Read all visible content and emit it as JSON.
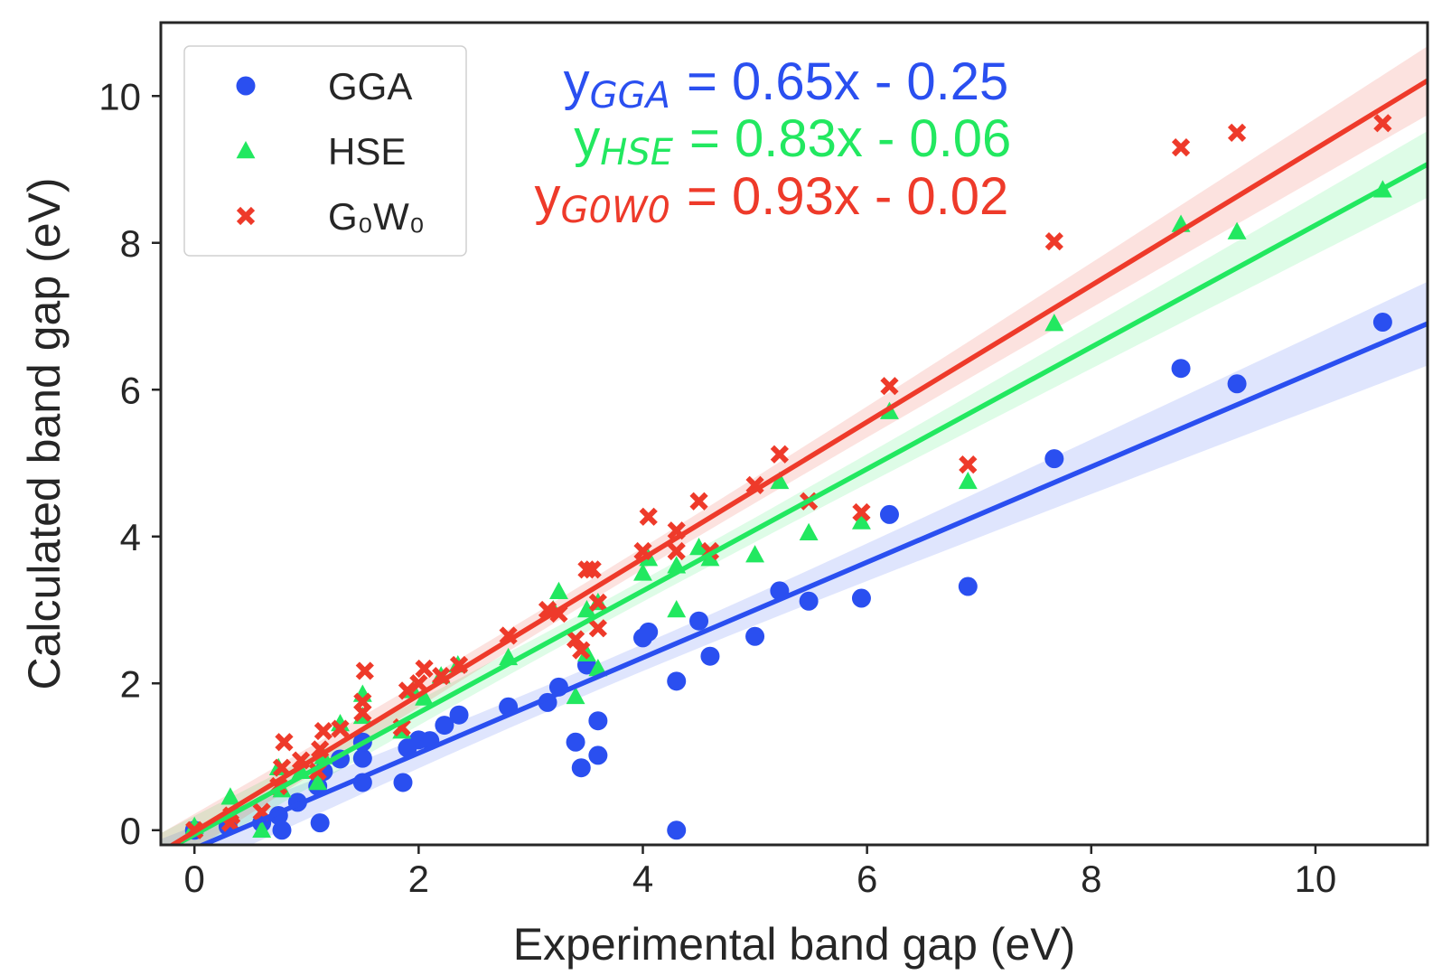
{
  "chart_data": {
    "type": "scatter",
    "xlabel": "Experimental band gap (eV)",
    "ylabel": "Calculated band gap (eV)",
    "xlim": [
      -0.3,
      11.0
    ],
    "ylim": [
      -0.2,
      11.0
    ],
    "xticks": [
      0,
      2,
      4,
      6,
      8,
      10
    ],
    "yticks": [
      0,
      2,
      4,
      6,
      8,
      10
    ],
    "grid": false,
    "legend_placement": "top-left",
    "series": [
      {
        "name": "GGA",
        "legend_label": "GGA",
        "marker": "circle",
        "color": "#2a4ff0",
        "fit": {
          "slope": 0.65,
          "intercept": -0.25
        },
        "equation": {
          "y": "y",
          "sub": "GGA",
          "rhs": " = 0.65x - 0.25"
        },
        "points": [
          [
            0.0,
            0.0
          ],
          [
            0.3,
            0.05
          ],
          [
            0.6,
            0.1
          ],
          [
            0.75,
            0.2
          ],
          [
            0.78,
            0.0
          ],
          [
            0.92,
            0.38
          ],
          [
            1.1,
            0.6
          ],
          [
            1.12,
            0.1
          ],
          [
            1.15,
            0.8
          ],
          [
            1.3,
            0.97
          ],
          [
            1.5,
            0.98
          ],
          [
            1.5,
            1.2
          ],
          [
            1.5,
            0.65
          ],
          [
            1.86,
            0.65
          ],
          [
            1.9,
            1.12
          ],
          [
            2.0,
            1.23
          ],
          [
            2.1,
            1.22
          ],
          [
            2.23,
            1.43
          ],
          [
            2.36,
            1.57
          ],
          [
            2.8,
            1.68
          ],
          [
            3.15,
            1.74
          ],
          [
            3.25,
            1.95
          ],
          [
            3.4,
            1.2
          ],
          [
            3.45,
            0.85
          ],
          [
            3.5,
            2.25
          ],
          [
            3.6,
            1.49
          ],
          [
            3.6,
            1.02
          ],
          [
            4.0,
            2.62
          ],
          [
            4.05,
            2.7
          ],
          [
            4.3,
            2.03
          ],
          [
            4.3,
            0.0
          ],
          [
            4.5,
            2.85
          ],
          [
            4.6,
            2.37
          ],
          [
            5.0,
            2.64
          ],
          [
            5.22,
            3.26
          ],
          [
            5.48,
            3.12
          ],
          [
            5.95,
            3.16
          ],
          [
            6.2,
            4.3
          ],
          [
            6.9,
            3.32
          ],
          [
            7.67,
            5.06
          ],
          [
            8.8,
            6.29
          ],
          [
            9.3,
            6.08
          ],
          [
            10.6,
            6.92
          ]
        ]
      },
      {
        "name": "HSE",
        "legend_label": "HSE",
        "marker": "triangle",
        "color": "#22e860",
        "fit": {
          "slope": 0.83,
          "intercept": -0.06
        },
        "equation": {
          "y": "y",
          "sub": "HSE",
          "rhs": " = 0.83x - 0.06"
        },
        "points": [
          [
            0.0,
            0.05
          ],
          [
            0.32,
            0.45
          ],
          [
            0.6,
            0.0
          ],
          [
            0.75,
            0.85
          ],
          [
            0.78,
            0.55
          ],
          [
            0.95,
            0.8
          ],
          [
            1.1,
            0.65
          ],
          [
            1.15,
            1.0
          ],
          [
            1.3,
            1.45
          ],
          [
            1.5,
            1.55
          ],
          [
            1.5,
            1.85
          ],
          [
            1.85,
            1.35
          ],
          [
            1.95,
            1.9
          ],
          [
            2.05,
            1.8
          ],
          [
            2.2,
            2.1
          ],
          [
            2.35,
            2.25
          ],
          [
            2.8,
            2.35
          ],
          [
            3.2,
            3.0
          ],
          [
            3.25,
            3.25
          ],
          [
            3.4,
            1.82
          ],
          [
            3.5,
            2.4
          ],
          [
            3.5,
            3.0
          ],
          [
            3.6,
            3.1
          ],
          [
            3.6,
            2.2
          ],
          [
            4.0,
            3.5
          ],
          [
            4.05,
            3.7
          ],
          [
            4.3,
            3.6
          ],
          [
            4.3,
            3.0
          ],
          [
            4.5,
            3.85
          ],
          [
            4.6,
            3.7
          ],
          [
            5.0,
            3.75
          ],
          [
            5.22,
            4.75
          ],
          [
            5.48,
            4.05
          ],
          [
            5.95,
            4.2
          ],
          [
            6.2,
            5.7
          ],
          [
            6.9,
            4.75
          ],
          [
            7.67,
            6.9
          ],
          [
            8.8,
            8.25
          ],
          [
            9.3,
            8.15
          ],
          [
            10.6,
            8.72
          ]
        ]
      },
      {
        "name": "G₀W₀",
        "legend_label": "G₀W₀",
        "marker": "x",
        "color": "#ee3a2a",
        "fit": {
          "slope": 0.93,
          "intercept": -0.02
        },
        "equation": {
          "y": "y",
          "sub": "G0W0",
          "rhs": " = 0.93x - 0.02"
        },
        "points": [
          [
            0.0,
            0.0
          ],
          [
            0.32,
            0.1
          ],
          [
            0.33,
            0.2
          ],
          [
            0.6,
            0.25
          ],
          [
            0.75,
            0.6
          ],
          [
            0.78,
            0.85
          ],
          [
            0.8,
            1.2
          ],
          [
            0.95,
            0.95
          ],
          [
            1.1,
            0.8
          ],
          [
            1.12,
            1.1
          ],
          [
            1.15,
            1.35
          ],
          [
            1.3,
            1.38
          ],
          [
            1.5,
            1.6
          ],
          [
            1.5,
            1.75
          ],
          [
            1.52,
            2.17
          ],
          [
            1.85,
            1.4
          ],
          [
            1.9,
            1.9
          ],
          [
            2.0,
            2.0
          ],
          [
            2.05,
            2.2
          ],
          [
            2.2,
            2.1
          ],
          [
            2.36,
            2.25
          ],
          [
            2.8,
            2.65
          ],
          [
            3.15,
            3.0
          ],
          [
            3.25,
            2.95
          ],
          [
            3.4,
            2.6
          ],
          [
            3.45,
            2.45
          ],
          [
            3.5,
            3.55
          ],
          [
            3.55,
            3.55
          ],
          [
            3.6,
            3.1
          ],
          [
            3.6,
            2.75
          ],
          [
            4.0,
            3.8
          ],
          [
            4.05,
            4.27
          ],
          [
            4.3,
            3.8
          ],
          [
            4.3,
            4.08
          ],
          [
            4.5,
            4.48
          ],
          [
            4.6,
            3.8
          ],
          [
            5.0,
            4.7
          ],
          [
            5.22,
            5.12
          ],
          [
            5.48,
            4.48
          ],
          [
            5.95,
            4.33
          ],
          [
            6.2,
            6.05
          ],
          [
            6.9,
            4.98
          ],
          [
            7.67,
            8.02
          ],
          [
            8.8,
            9.3
          ],
          [
            9.3,
            9.5
          ],
          [
            10.6,
            9.63
          ]
        ]
      }
    ]
  }
}
